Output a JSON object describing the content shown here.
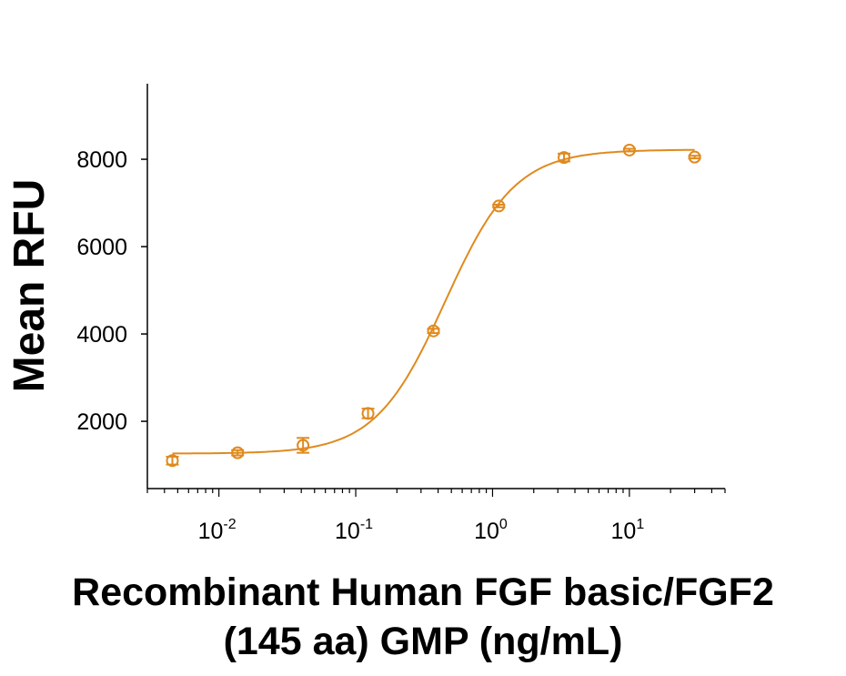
{
  "chart_data": {
    "type": "scatter",
    "title": "",
    "xlabel_lines": [
      "Recombinant Human FGF basic/FGF2",
      "(145 aa) GMP (ng/mL)"
    ],
    "ylabel": "Mean RFU",
    "x_scale": "log",
    "xlim": [
      0.003,
      50
    ],
    "ylim": [
      460,
      9730
    ],
    "x_ticks": [
      0.01,
      0.1,
      1,
      10
    ],
    "x_tick_labels": [
      {
        "base": "10",
        "exp": "-2"
      },
      {
        "base": "10",
        "exp": "-1"
      },
      {
        "base": "10",
        "exp": "0"
      },
      {
        "base": "10",
        "exp": "1"
      }
    ],
    "y_ticks": [
      2000,
      4000,
      6000,
      8000
    ],
    "y_tick_labels": [
      "2000",
      "4000",
      "6000",
      "8000"
    ],
    "grid": false,
    "color": "#E08A1E",
    "points": {
      "x": [
        0.00457,
        0.0137,
        0.0412,
        0.123,
        0.37,
        1.11,
        3.33,
        10,
        30
      ],
      "y": [
        1100,
        1280,
        1450,
        2180,
        4070,
        6930,
        8040,
        8210,
        8050
      ],
      "error": [
        90,
        60,
        170,
        110,
        50,
        30,
        90,
        30,
        30
      ]
    },
    "fit": {
      "model": "4PL",
      "bottom": 1260,
      "top": 8220,
      "ec50": 0.45,
      "hill": 1.7
    }
  }
}
